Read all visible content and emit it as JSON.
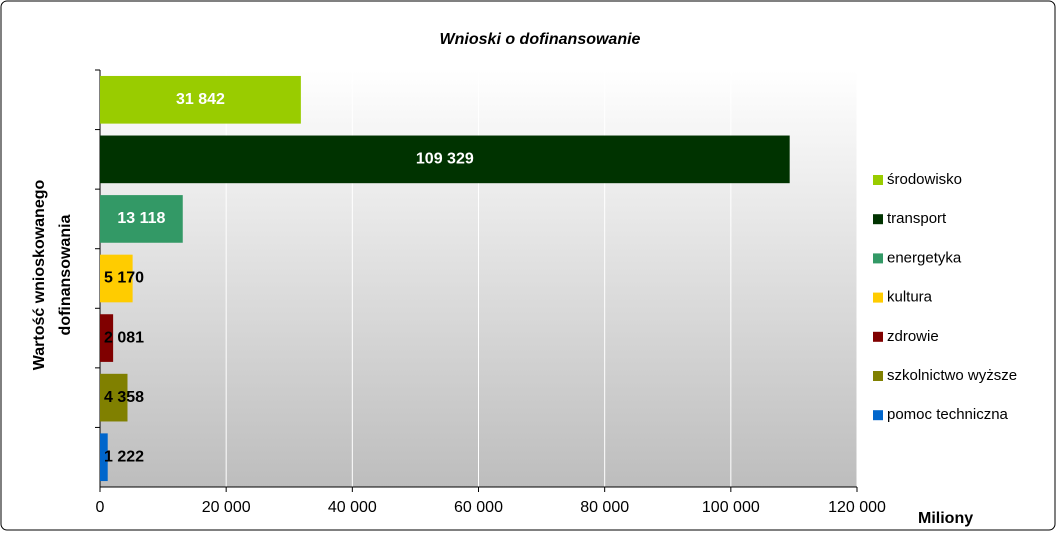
{
  "chart_data": {
    "type": "bar",
    "orientation": "horizontal",
    "title": "Wnioski o dofinansowanie",
    "ylabel": [
      "Wartość wnioskowanego",
      "dofinansowania"
    ],
    "xlabel": "Miliony",
    "categories": [
      "środowisko",
      "transport",
      "energetyka",
      "kultura",
      "zdrowie",
      "szkolnictwo wyższe",
      "pomoc techniczna"
    ],
    "values": [
      31842,
      109329,
      13118,
      5170,
      2081,
      4358,
      1222
    ],
    "value_labels": [
      "31 842",
      "109 329",
      "13 118",
      "5 170",
      "2 081",
      "4 358",
      "1 222"
    ],
    "colors": [
      "#99cc00",
      "#003300",
      "#339966",
      "#ffcc00",
      "#800000",
      "#808000",
      "#0066cc"
    ],
    "xlim": [
      0,
      120000
    ],
    "xticks": [
      0,
      {
        "value": 20000,
        "label": "20 000"
      },
      {
        "value": 40000,
        "label": "40 000"
      },
      {
        "value": 60000,
        "label": "60 000"
      },
      {
        "value": 80000,
        "label": "80 000"
      },
      {
        "value": 100000,
        "label": "100 000"
      },
      {
        "value": 120000,
        "label": "120 000"
      }
    ],
    "grid": true,
    "legend": "right"
  }
}
